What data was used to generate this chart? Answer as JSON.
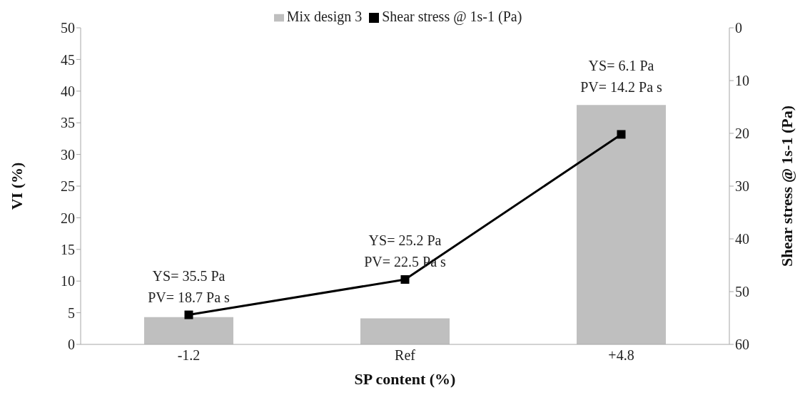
{
  "chart_data": {
    "type": "bar",
    "xlabel": "SP content (%)",
    "ylabel": "VI (%)",
    "y2label": "Shear stress @ 1s-1 (Pa)",
    "categories": [
      "-1.2",
      "Ref",
      "+4.8"
    ],
    "series": [
      {
        "name": "Mix design 3",
        "color": "#bfbfbf",
        "values": [
          4.3,
          4.1,
          37.8
        ]
      },
      {
        "name": "Shear stress @ 1s-1 (Pa)",
        "type": "line",
        "axis": "y2",
        "color": "#000000",
        "marker": "square",
        "values": [
          54.4,
          47.7,
          20.2
        ]
      }
    ],
    "ylim": [
      0,
      50
    ],
    "yticks": [
      0,
      5,
      10,
      15,
      20,
      25,
      30,
      35,
      40,
      45,
      50
    ],
    "y2lim": [
      60,
      0
    ],
    "y2ticks": [
      0,
      10,
      20,
      30,
      40,
      50,
      60
    ],
    "annotations": [
      "YS= 35.5 Pa",
      "PV= 18.7 Pa s",
      "YS= 25.2 Pa",
      "PV= 22.5 Pa s",
      "YS= 6.1 Pa",
      "PV= 14.2 Pa s"
    ],
    "grid": false,
    "legend": "top"
  }
}
